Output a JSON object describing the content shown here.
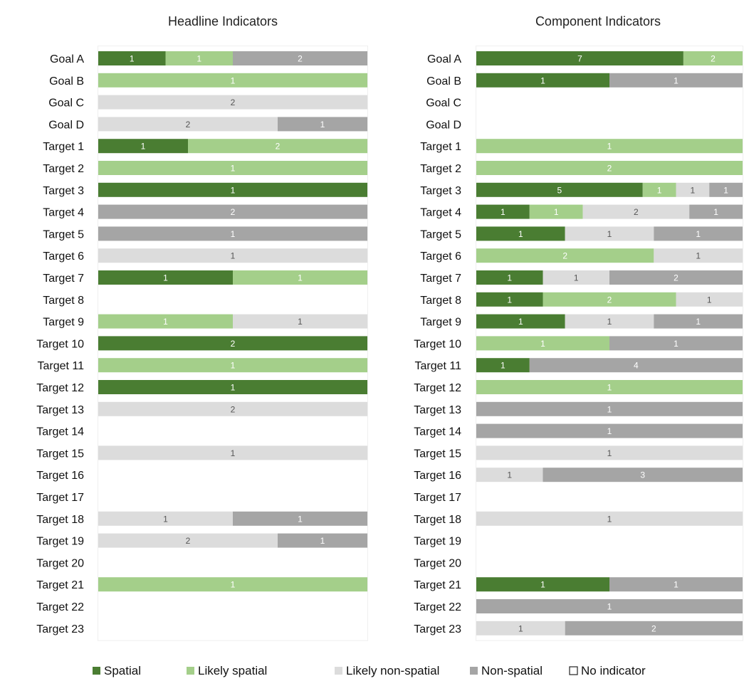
{
  "chart_data": {
    "type": "bar",
    "orientation": "horizontal",
    "stacked": "100%",
    "legend": {
      "position": "bottom",
      "items": [
        {
          "key": "spatial",
          "label": "Spatial",
          "color": "#4a7d32"
        },
        {
          "key": "likely_spatial",
          "label": "Likely spatial",
          "color": "#a4cf8a"
        },
        {
          "key": "likely_non_spatial",
          "label": "Likely non-spatial",
          "color": "#dcdcdc"
        },
        {
          "key": "non_spatial",
          "label": "Non-spatial",
          "color": "#a5a5a5"
        },
        {
          "key": "no_indicator",
          "label": "No indicator",
          "color": "#ffffff"
        }
      ]
    },
    "categories": [
      "Goal A",
      "Goal B",
      "Goal C",
      "Goal D",
      "Target 1",
      "Target 2",
      "Target 3",
      "Target 4",
      "Target 5",
      "Target 6",
      "Target 7",
      "Target 8",
      "Target 9",
      "Target 10",
      "Target 11",
      "Target 12",
      "Target 13",
      "Target 14",
      "Target 15",
      "Target 16",
      "Target 17",
      "Target 18",
      "Target 19",
      "Target 20",
      "Target 21",
      "Target 22",
      "Target 23"
    ],
    "panels": [
      {
        "title": "Headline Indicators",
        "series": [
          {
            "key": "spatial",
            "values": [
              1,
              0,
              0,
              0,
              1,
              0,
              1,
              0,
              0,
              0,
              1,
              0,
              0,
              2,
              0,
              1,
              0,
              0,
              0,
              0,
              0,
              0,
              0,
              0,
              0,
              0,
              0
            ]
          },
          {
            "key": "likely_spatial",
            "values": [
              1,
              1,
              0,
              0,
              2,
              1,
              0,
              0,
              0,
              0,
              1,
              0,
              1,
              0,
              1,
              0,
              0,
              0,
              0,
              0,
              0,
              0,
              0,
              0,
              1,
              0,
              0
            ]
          },
          {
            "key": "likely_non_spatial",
            "values": [
              0,
              0,
              2,
              2,
              0,
              0,
              0,
              0,
              0,
              1,
              0,
              0,
              1,
              0,
              0,
              0,
              2,
              0,
              1,
              0,
              0,
              1,
              2,
              0,
              0,
              0,
              0
            ]
          },
          {
            "key": "non_spatial",
            "values": [
              2,
              0,
              0,
              1,
              0,
              0,
              0,
              2,
              1,
              0,
              0,
              0,
              0,
              0,
              0,
              0,
              0,
              0,
              0,
              0,
              0,
              1,
              1,
              0,
              0,
              0,
              0
            ]
          }
        ]
      },
      {
        "title": "Component Indicators",
        "series": [
          {
            "key": "spatial",
            "values": [
              7,
              1,
              0,
              0,
              0,
              0,
              5,
              1,
              1,
              0,
              1,
              1,
              1,
              0,
              1,
              0,
              0,
              0,
              0,
              0,
              0,
              0,
              0,
              0,
              1,
              0,
              0
            ]
          },
          {
            "key": "likely_spatial",
            "values": [
              2,
              0,
              0,
              0,
              1,
              2,
              1,
              1,
              0,
              2,
              0,
              2,
              0,
              1,
              0,
              1,
              0,
              0,
              0,
              0,
              0,
              0,
              0,
              0,
              0,
              0,
              0
            ]
          },
          {
            "key": "likely_non_spatial",
            "values": [
              0,
              0,
              0,
              0,
              0,
              0,
              1,
              2,
              1,
              1,
              1,
              1,
              1,
              0,
              0,
              0,
              0,
              0,
              1,
              1,
              0,
              1,
              0,
              0,
              0,
              0,
              1
            ]
          },
          {
            "key": "non_spatial",
            "values": [
              0,
              1,
              0,
              0,
              0,
              0,
              1,
              1,
              1,
              0,
              2,
              0,
              1,
              1,
              4,
              0,
              1,
              1,
              0,
              3,
              0,
              0,
              0,
              0,
              1,
              1,
              2
            ]
          }
        ]
      }
    ]
  }
}
